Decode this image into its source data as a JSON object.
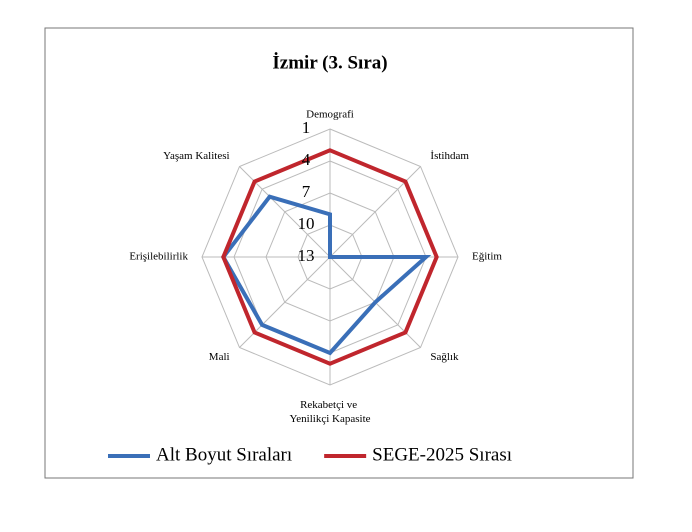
{
  "chart_data": {
    "type": "radar",
    "title": "İzmir (3. Sıra)",
    "categories": [
      "Demografi",
      "İstihdam",
      "Eğitim",
      "Sağlık",
      "Rekabetçi ve Yenilikçi Kapasite",
      "Mali",
      "Erişilebilirlik",
      "Yaşam Kalitesi"
    ],
    "rlim": [
      13,
      1
    ],
    "rticks": [
      1,
      4,
      7,
      10,
      13
    ],
    "grid": true,
    "legend": "bottom",
    "series": [
      {
        "name": "Alt Boyut Sıraları",
        "color": "#3a6fb8",
        "values": [
          9,
          13,
          4,
          7,
          4,
          4,
          3,
          5
        ]
      },
      {
        "name": "SEGE-2025 Sırası",
        "color": "#c0262d",
        "values": [
          3,
          3,
          3,
          3,
          3,
          3,
          3,
          3
        ]
      }
    ]
  }
}
